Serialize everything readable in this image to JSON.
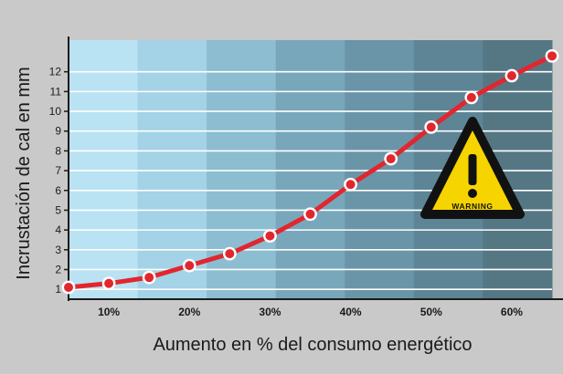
{
  "chart_data": {
    "type": "line",
    "title": "",
    "xlabel": "Aumento en % del consumo energético",
    "ylabel": "Incrustación de cal en mm",
    "x_ticks": [
      "10%",
      "20%",
      "30%",
      "40%",
      "50%",
      "60%"
    ],
    "y_ticks": [
      "1",
      "2",
      "3",
      "4",
      "5",
      "6",
      "7",
      "8",
      "9",
      "10",
      "11",
      "12"
    ],
    "xlim": [
      5,
      65
    ],
    "ylim": [
      0.5,
      13.6
    ],
    "grid": true,
    "series": [
      {
        "x": [
          5,
          10,
          15,
          20,
          25,
          30,
          35,
          40,
          45,
          50,
          55,
          60,
          65
        ],
        "y": [
          1.1,
          1.3,
          1.6,
          2.2,
          2.8,
          3.7,
          4.8,
          6.3,
          7.6,
          9.2,
          10.7,
          11.8,
          12.8
        ]
      }
    ],
    "colors": {
      "line": "#e2262e",
      "marker_fill": "#e2262e",
      "marker_stroke": "#ffffff",
      "gridline": "#ffffff",
      "axis": "#1a1a1a",
      "text": "#1a1a1a"
    },
    "background_bands": [
      "#b9e2f3",
      "#a4d2e6",
      "#8cbdd1",
      "#78a7bb",
      "#6a95a8",
      "#5d8596",
      "#557784"
    ]
  },
  "warning_sign": {
    "icon": "warning-triangle-icon",
    "label": "WARNING",
    "fill": "#f6d400",
    "border": "#111111"
  }
}
